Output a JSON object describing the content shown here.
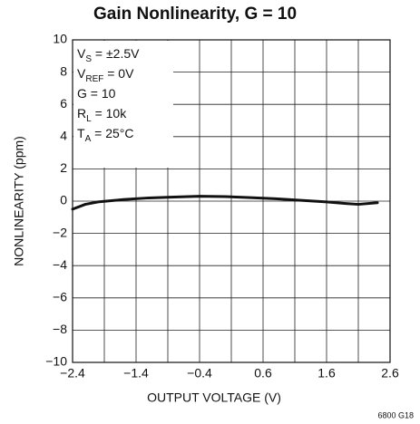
{
  "chart_data": {
    "type": "line",
    "title": "Gain Nonlinearity, G = 10",
    "x_label": "OUTPUT VOLTAGE (V)",
    "y_label": "NONLINEARITY (ppm)",
    "footnote": "6800 G18",
    "annotations": [
      [
        "V",
        "S",
        " = ±2.5V"
      ],
      [
        "V",
        "REF",
        " = 0V"
      ],
      [
        "G = 10"
      ],
      [
        "R",
        "L",
        " = 10k"
      ],
      [
        "T",
        "A",
        " = 25°C"
      ]
    ],
    "x": [
      -2.4,
      -2.2,
      -2.0,
      -1.6,
      -1.2,
      -0.8,
      -0.4,
      0,
      0.4,
      0.8,
      1.2,
      1.6,
      1.9,
      2.1,
      2.4
    ],
    "series": [
      {
        "color": "#111111",
        "values": [
          -0.5,
          -0.2,
          -0.05,
          0.1,
          0.2,
          0.25,
          0.3,
          0.28,
          0.22,
          0.15,
          0.05,
          -0.05,
          -0.15,
          -0.2,
          -0.1
        ]
      }
    ],
    "xlim": [
      -2.4,
      2.6
    ],
    "ylim": [
      -10,
      10
    ],
    "xticks": [
      {
        "value": -2.4,
        "label": "−2.4"
      },
      {
        "value": -1.4,
        "label": "−1.4"
      },
      {
        "value": -0.4,
        "label": "−0.4"
      },
      0.6,
      1.6,
      2.6
    ],
    "xminorticks": [
      -1.9,
      -0.9,
      0.1,
      1.1,
      2.1
    ],
    "yticks": [
      {
        "value": -10,
        "label": "−10"
      },
      {
        "value": -8,
        "label": "−8"
      },
      {
        "value": -6,
        "label": "−6"
      },
      {
        "value": -4,
        "label": "−4"
      },
      {
        "value": -2,
        "label": "−2"
      },
      0,
      2,
      4,
      6,
      8,
      10
    ],
    "grid": true
  }
}
